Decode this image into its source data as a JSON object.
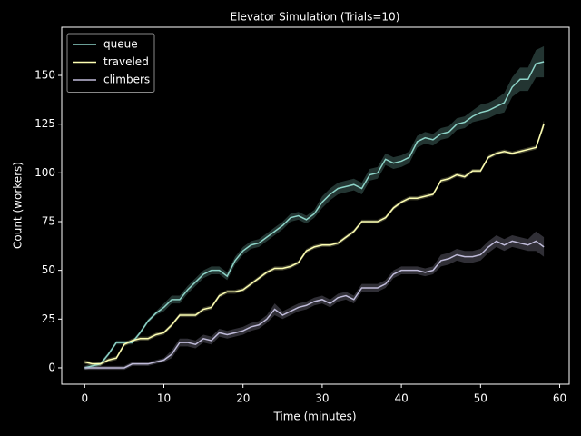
{
  "chart_data": {
    "type": "line",
    "title": "Elevator Simulation (Trials=10)",
    "x_label": "Time (minutes)",
    "y_label": "Count (workers)",
    "x": [
      0,
      1,
      2,
      3,
      4,
      5,
      6,
      7,
      8,
      9,
      10,
      11,
      12,
      13,
      14,
      15,
      16,
      17,
      18,
      19,
      20,
      21,
      22,
      23,
      24,
      25,
      26,
      27,
      28,
      29,
      30,
      31,
      32,
      33,
      34,
      35,
      36,
      37,
      38,
      39,
      40,
      41,
      42,
      43,
      44,
      45,
      46,
      47,
      48,
      49,
      50,
      51,
      52,
      53,
      54,
      55,
      56,
      57,
      58
    ],
    "series": [
      {
        "name": "queue",
        "color": "#8dd3c7",
        "values": [
          0,
          1,
          2,
          7,
          13,
          13,
          13,
          18,
          24,
          28,
          31,
          35,
          35,
          40,
          44,
          48,
          50,
          50,
          47,
          55,
          60,
          63,
          64,
          67,
          70,
          73,
          77,
          78,
          76,
          79,
          85,
          89,
          92,
          93,
          94,
          92,
          99,
          100,
          107,
          105,
          106,
          108,
          116,
          118,
          117,
          120,
          121,
          125,
          126,
          129,
          131,
          132,
          134,
          136,
          144,
          148,
          148,
          156,
          157
        ],
        "errors": [
          1,
          1,
          1,
          1,
          1,
          1,
          1,
          1,
          1,
          1,
          2,
          2,
          2,
          2,
          2,
          2,
          2,
          2,
          2,
          2,
          2,
          2,
          2,
          2,
          2,
          2,
          2,
          2,
          2,
          2,
          3,
          3,
          3,
          3,
          3,
          3,
          3,
          3,
          3,
          3,
          3,
          3,
          3,
          3,
          3,
          3,
          3,
          3,
          3,
          3,
          4,
          4,
          4,
          5,
          5,
          6,
          6,
          7,
          8
        ]
      },
      {
        "name": "traveled",
        "color": "#feffb3",
        "values": [
          3,
          2,
          2,
          4,
          5,
          12,
          14,
          15,
          15,
          17,
          18,
          22,
          27,
          27,
          27,
          30,
          31,
          37,
          39,
          39,
          40,
          43,
          46,
          49,
          51,
          51,
          52,
          54,
          60,
          62,
          63,
          63,
          64,
          67,
          70,
          75,
          75,
          75,
          77,
          82,
          85,
          87,
          87,
          88,
          89,
          96,
          97,
          99,
          98,
          101,
          101,
          108,
          110,
          111,
          110,
          111,
          112,
          113,
          125
        ],
        "errors": [
          1,
          1,
          1,
          1,
          1,
          1,
          1,
          1,
          1,
          1,
          1,
          1,
          1,
          1,
          1,
          1,
          1,
          1,
          1,
          1,
          1,
          1,
          1,
          1,
          1,
          1,
          1,
          1,
          1,
          1,
          1,
          1,
          1,
          1,
          1,
          1,
          1,
          1,
          1,
          1,
          1,
          1,
          1,
          1,
          1,
          1,
          1,
          1,
          1,
          1,
          1,
          1,
          1,
          1,
          1,
          1,
          1,
          1,
          2
        ]
      },
      {
        "name": "climbers",
        "color": "#bfbbd9",
        "values": [
          0,
          0,
          0,
          0,
          0,
          0,
          2,
          2,
          2,
          3,
          4,
          7,
          13,
          13,
          12,
          15,
          14,
          18,
          17,
          18,
          19,
          21,
          22,
          25,
          30,
          27,
          29,
          31,
          32,
          34,
          35,
          33,
          36,
          37,
          35,
          41,
          41,
          41,
          43,
          48,
          50,
          50,
          50,
          49,
          50,
          55,
          56,
          58,
          57,
          57,
          58,
          62,
          65,
          63,
          65,
          64,
          63,
          65,
          62
        ],
        "errors": [
          1,
          1,
          1,
          1,
          1,
          1,
          1,
          1,
          1,
          1,
          1,
          2,
          2,
          2,
          2,
          2,
          2,
          2,
          2,
          2,
          2,
          2,
          2,
          2,
          3,
          2,
          2,
          2,
          2,
          2,
          2,
          2,
          2,
          2,
          2,
          2,
          2,
          2,
          2,
          2,
          2,
          2,
          2,
          2,
          2,
          3,
          3,
          3,
          3,
          3,
          3,
          3,
          3,
          3,
          3,
          3,
          3,
          5,
          5
        ]
      }
    ],
    "xlim": [
      -2.9,
      61.2
    ],
    "ylim": [
      -8.4,
      174.7
    ],
    "xticks": [
      0,
      10,
      20,
      30,
      40,
      50,
      60
    ],
    "yticks": [
      0,
      25,
      50,
      75,
      100,
      125,
      150
    ],
    "legend": "upper left"
  }
}
